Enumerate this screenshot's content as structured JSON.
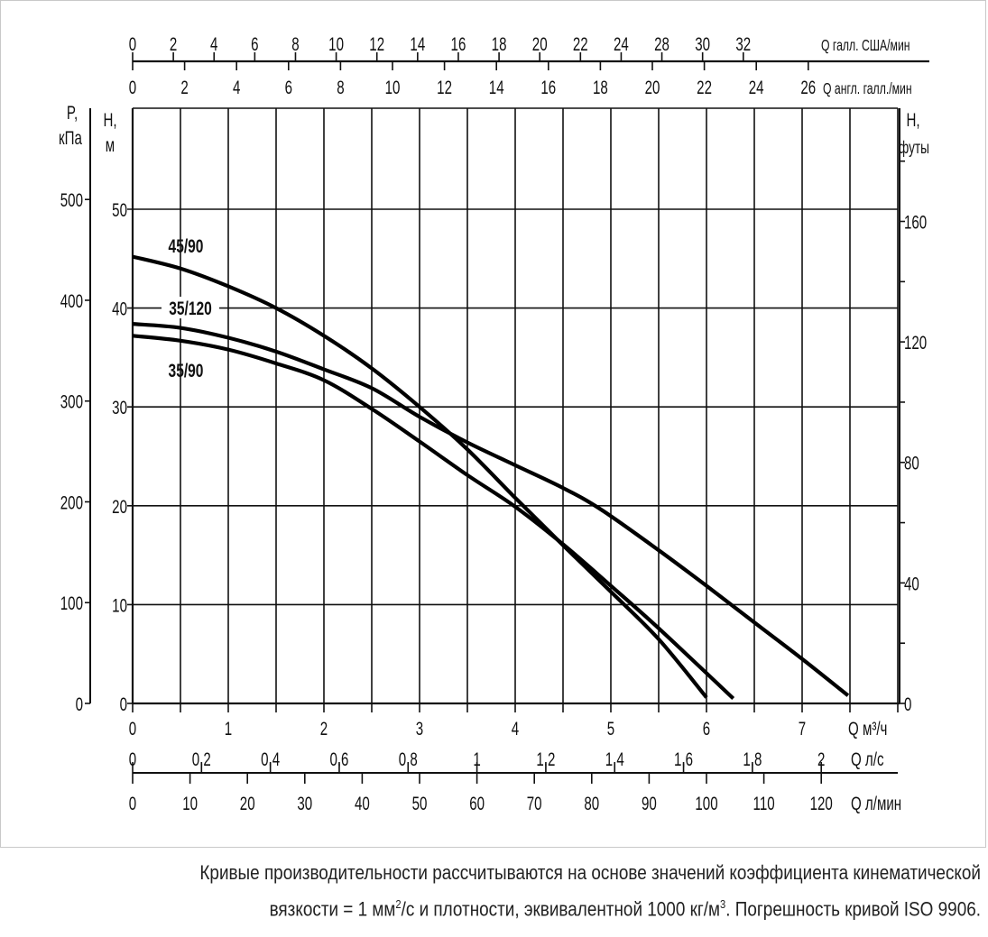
{
  "chart_data": {
    "type": "line",
    "x_axis": {
      "label": "Q м³/ч",
      "range": [
        0,
        8
      ],
      "ticks": [
        "0",
        "1",
        "2",
        "3",
        "4",
        "5",
        "6",
        "7"
      ]
    },
    "x_axis_ls": {
      "label": "Q л/с",
      "ticks": [
        "0",
        "0,2",
        "0,4",
        "0,6",
        "0,8",
        "1",
        "1,2",
        "1,4",
        "1,6",
        "1,8",
        "2"
      ]
    },
    "x_axis_lmin": {
      "label": "Q л/мин",
      "ticks": [
        "0",
        "10",
        "20",
        "30",
        "40",
        "50",
        "60",
        "70",
        "80",
        "90",
        "100",
        "110",
        "120"
      ]
    },
    "x_axis_us": {
      "label": "Q галл. США/мин",
      "ticks": [
        "0",
        "2",
        "4",
        "6",
        "8",
        "10",
        "12",
        "14",
        "16",
        "18",
        "20",
        "22",
        "24",
        "28",
        "30",
        "32"
      ]
    },
    "x_axis_imp": {
      "label": "Q англ. галл./мин",
      "ticks": [
        "0",
        "2",
        "4",
        "6",
        "8",
        "10",
        "12",
        "14",
        "16",
        "18",
        "20",
        "22",
        "24",
        "26"
      ]
    },
    "y_axis": {
      "label_top": "H,",
      "label_unit": "м",
      "range": [
        0,
        60
      ],
      "ticks": [
        "0",
        "10",
        "20",
        "30",
        "40",
        "50"
      ]
    },
    "y_axis_kpa": {
      "label_top": "P,",
      "label_unit": "кПа",
      "ticks": [
        "0",
        "100",
        "200",
        "300",
        "400",
        "500"
      ]
    },
    "y_axis_ft": {
      "label_top": "H,",
      "label_unit": "футы",
      "ticks": [
        "0",
        "40",
        "80",
        "120",
        "160"
      ]
    },
    "grid": true,
    "series": [
      {
        "name": "45/90",
        "points": [
          [
            0,
            45.2
          ],
          [
            0.5,
            44.0
          ],
          [
            1,
            42.2
          ],
          [
            1.5,
            40.0
          ],
          [
            2,
            37.2
          ],
          [
            2.5,
            33.9
          ],
          [
            3,
            30.0
          ],
          [
            3.5,
            25.7
          ],
          [
            4,
            20.8
          ],
          [
            4.5,
            16.0
          ],
          [
            5,
            11.3
          ],
          [
            5.5,
            6.5
          ],
          [
            6,
            0.6
          ]
        ]
      },
      {
        "name": "35/120",
        "points": [
          [
            0,
            38.4
          ],
          [
            0.5,
            38.0
          ],
          [
            1,
            37.0
          ],
          [
            1.5,
            35.6
          ],
          [
            2,
            33.8
          ],
          [
            2.5,
            31.9
          ],
          [
            3,
            29.0
          ],
          [
            3.5,
            26.4
          ],
          [
            4,
            24.1
          ],
          [
            4.5,
            21.8
          ],
          [
            4.9,
            19.6
          ],
          [
            5.5,
            15.5
          ],
          [
            6,
            11.9
          ],
          [
            6.54,
            7.9
          ],
          [
            7,
            4.5
          ],
          [
            7.48,
            0.8
          ]
        ]
      },
      {
        "name": "35/90",
        "points": [
          [
            0,
            37.2
          ],
          [
            0.5,
            36.7
          ],
          [
            1,
            35.8
          ],
          [
            1.5,
            34.4
          ],
          [
            2,
            32.7
          ],
          [
            2.5,
            29.8
          ],
          [
            3,
            26.5
          ],
          [
            3.5,
            23.1
          ],
          [
            4,
            19.9
          ],
          [
            4.5,
            16.1
          ],
          [
            5,
            11.9
          ],
          [
            5.5,
            7.6
          ],
          [
            6.28,
            0.5
          ]
        ]
      }
    ]
  },
  "caption": {
    "line1": "Кривые производительности рассчитываются на основе значений коэффициента кинематической",
    "line2_a": "вязкости = 1 мм",
    "line2_sup1": "2",
    "line2_b": "/с и плотности, эквивалентной 1000 кг/м",
    "line2_sup2": "3",
    "line2_c": ". Погрешность кривой ISO 9906."
  }
}
